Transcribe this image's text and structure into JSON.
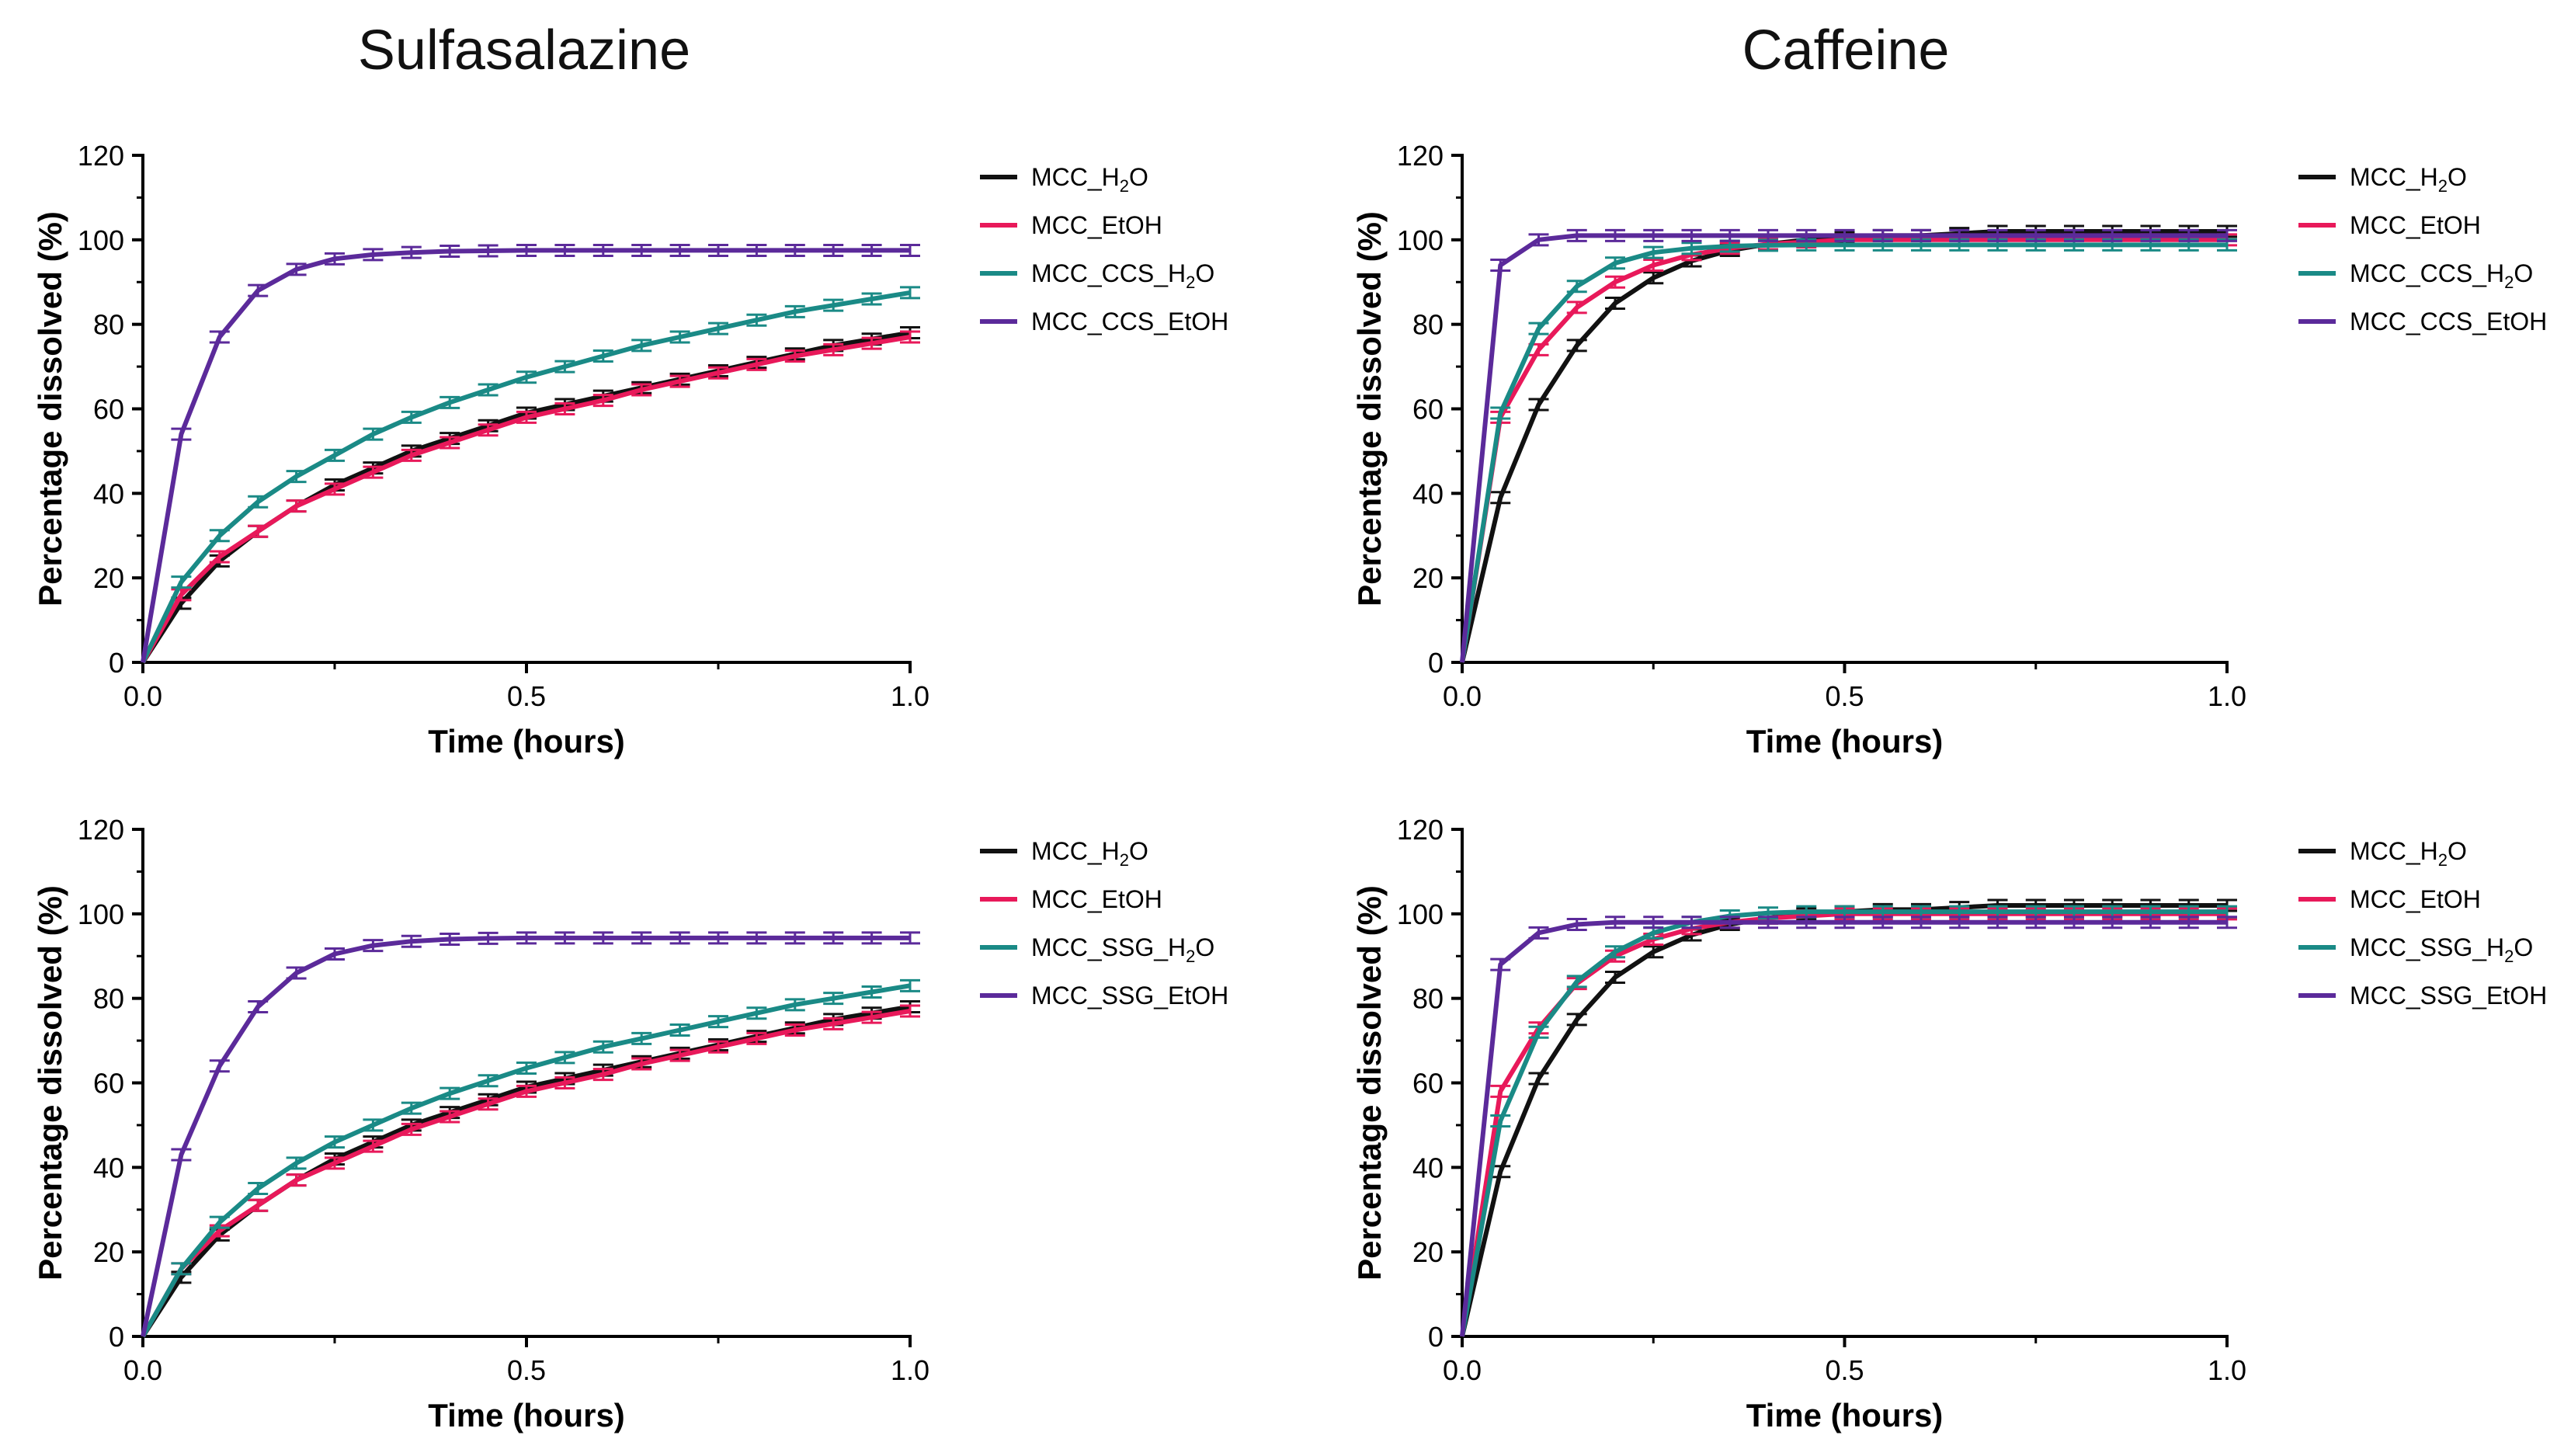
{
  "columns": {
    "left": "Sulfasalazine",
    "right": "Caffeine"
  },
  "series_colors": {
    "MCC_H2O": "#111111",
    "MCC_EtOH": "#e8195a",
    "H2O_disintegrant": "#1a8a86",
    "EtOH_disintegrant": "#5b2a9a"
  },
  "chart_data": [
    {
      "type": "line",
      "title": "Sulfasalazine",
      "xlabel": "Time (hours)",
      "ylabel": "Percentage dissolved (%)",
      "xlim": [
        0,
        1.0
      ],
      "ylim": [
        0,
        120
      ],
      "xticks": [
        "0.0",
        "0.5",
        "1.0"
      ],
      "yticks": [
        "0",
        "20",
        "40",
        "60",
        "80",
        "100",
        "120"
      ],
      "legend": {
        "placement": "right",
        "labels": [
          "MCC_H₂O",
          "MCC_EtOH",
          "MCC_CCS_H₂O",
          "MCC_CCS_EtOH"
        ]
      },
      "x": [
        0,
        0.05,
        0.1,
        0.15,
        0.2,
        0.25,
        0.3,
        0.35,
        0.4,
        0.45,
        0.5,
        0.55,
        0.6,
        0.65,
        0.7,
        0.75,
        0.8,
        0.85,
        0.9,
        0.95,
        1.0
      ],
      "series": [
        {
          "name": "MCC_H₂O",
          "color": "#111111",
          "values": [
            0,
            14,
            24,
            31,
            37,
            42,
            46,
            50,
            53,
            56,
            59,
            61,
            63,
            65,
            67,
            69,
            71,
            73,
            75,
            76.5,
            78
          ]
        },
        {
          "name": "MCC_EtOH",
          "color": "#e8195a",
          "values": [
            0,
            16,
            25,
            31,
            37,
            41,
            45,
            49,
            52,
            55,
            58,
            60,
            62,
            64.5,
            66.5,
            68.5,
            70.5,
            72.5,
            74,
            75.5,
            77
          ]
        },
        {
          "name": "MCC_CCS_H₂O",
          "color": "#1a8a86",
          "values": [
            0,
            19,
            30,
            38,
            44,
            49,
            54,
            58,
            61.5,
            64.5,
            67.5,
            70,
            72.5,
            75,
            77,
            79,
            81,
            83,
            84.5,
            86,
            87.5
          ]
        },
        {
          "name": "MCC_CCS_EtOH",
          "color": "#5b2a9a",
          "values": [
            0,
            54,
            77,
            88,
            93,
            95.5,
            96.5,
            97,
            97.3,
            97.4,
            97.5,
            97.5,
            97.5,
            97.5,
            97.5,
            97.5,
            97.5,
            97.5,
            97.5,
            97.5,
            97.5
          ]
        }
      ]
    },
    {
      "type": "line",
      "title": "Caffeine",
      "xlabel": "Time (hours)",
      "ylabel": "Percentage dissolved (%)",
      "xlim": [
        0,
        1.0
      ],
      "ylim": [
        0,
        120
      ],
      "xticks": [
        "0.0",
        "0.5",
        "1.0"
      ],
      "yticks": [
        "0",
        "20",
        "40",
        "60",
        "80",
        "100",
        "120"
      ],
      "legend": {
        "placement": "right",
        "labels": [
          "MCC_H₂O",
          "MCC_EtOH",
          "MCC_CCS_H₂O",
          "MCC_CCS_EtOH"
        ]
      },
      "x": [
        0,
        0.05,
        0.1,
        0.15,
        0.2,
        0.25,
        0.3,
        0.35,
        0.4,
        0.45,
        0.5,
        0.55,
        0.6,
        0.65,
        0.7,
        0.75,
        0.8,
        0.85,
        0.9,
        0.95,
        1.0
      ],
      "series": [
        {
          "name": "MCC_H₂O",
          "color": "#111111",
          "values": [
            0,
            39,
            61,
            75,
            85,
            91,
            95,
            97.5,
            99,
            100,
            100.5,
            101,
            101,
            101.5,
            102,
            102,
            102,
            102,
            102,
            102,
            102
          ]
        },
        {
          "name": "MCC_EtOH",
          "color": "#e8195a",
          "values": [
            0,
            58,
            74,
            84,
            90,
            94,
            96.5,
            98,
            99,
            99.5,
            100,
            100,
            100,
            100,
            100,
            100,
            100,
            100,
            100,
            100,
            100
          ]
        },
        {
          "name": "MCC_CCS_H₂O",
          "color": "#1a8a86",
          "values": [
            0,
            59,
            79,
            89,
            94.5,
            97,
            98,
            98.5,
            98.7,
            98.8,
            98.8,
            98.8,
            98.8,
            98.8,
            98.8,
            98.8,
            98.8,
            98.8,
            98.8,
            98.8,
            98.8
          ]
        },
        {
          "name": "MCC_CCS_EtOH",
          "color": "#5b2a9a",
          "values": [
            0,
            94,
            100,
            101,
            101,
            101,
            101,
            101,
            101,
            101,
            101,
            101,
            101,
            101,
            101,
            101,
            101,
            101,
            101,
            101,
            101
          ]
        }
      ]
    },
    {
      "type": "line",
      "title": "",
      "xlabel": "Time (hours)",
      "ylabel": "Percentage dissolved (%)",
      "xlim": [
        0,
        1.0
      ],
      "ylim": [
        0,
        120
      ],
      "xticks": [
        "0.0",
        "0.5",
        "1.0"
      ],
      "yticks": [
        "0",
        "20",
        "40",
        "60",
        "80",
        "100",
        "120"
      ],
      "legend": {
        "placement": "right",
        "labels": [
          "MCC_H₂O",
          "MCC_EtOH",
          "MCC_SSG_H₂O",
          "MCC_SSG_EtOH"
        ]
      },
      "x": [
        0,
        0.05,
        0.1,
        0.15,
        0.2,
        0.25,
        0.3,
        0.35,
        0.4,
        0.45,
        0.5,
        0.55,
        0.6,
        0.65,
        0.7,
        0.75,
        0.8,
        0.85,
        0.9,
        0.95,
        1.0
      ],
      "series": [
        {
          "name": "MCC_H₂O",
          "color": "#111111",
          "values": [
            0,
            14,
            24,
            31,
            37,
            42,
            46,
            50,
            53,
            56,
            59,
            61,
            63,
            65,
            67,
            69,
            71,
            73,
            75,
            76.5,
            78
          ]
        },
        {
          "name": "MCC_EtOH",
          "color": "#e8195a",
          "values": [
            0,
            16,
            25,
            31,
            37,
            41,
            45,
            49,
            52,
            55,
            58,
            60,
            62,
            64.5,
            66.5,
            68.5,
            70.5,
            72.5,
            74,
            75.5,
            77
          ]
        },
        {
          "name": "MCC_SSG_H₂O",
          "color": "#1a8a86",
          "values": [
            0,
            16,
            27,
            35,
            41,
            46,
            50,
            54,
            57.5,
            60.5,
            63.5,
            66,
            68.5,
            70.5,
            72.5,
            74.5,
            76.5,
            78.5,
            80,
            81.5,
            83
          ]
        },
        {
          "name": "MCC_SSG_EtOH",
          "color": "#5b2a9a",
          "values": [
            0,
            43,
            64,
            78,
            86,
            90.5,
            92.5,
            93.5,
            94,
            94.2,
            94.3,
            94.3,
            94.3,
            94.3,
            94.3,
            94.3,
            94.3,
            94.3,
            94.3,
            94.3,
            94.3
          ]
        }
      ]
    },
    {
      "type": "line",
      "title": "",
      "xlabel": "Time (hours)",
      "ylabel": "Percentage dissolved (%)",
      "xlim": [
        0,
        1.0
      ],
      "ylim": [
        0,
        120
      ],
      "xticks": [
        "0.0",
        "0.5",
        "1.0"
      ],
      "yticks": [
        "0",
        "20",
        "40",
        "60",
        "80",
        "100",
        "120"
      ],
      "legend": {
        "placement": "right",
        "labels": [
          "MCC_H₂O",
          "MCC_EtOH",
          "MCC_SSG_H₂O",
          "MCC_SSG_EtOH"
        ]
      },
      "x": [
        0,
        0.05,
        0.1,
        0.15,
        0.2,
        0.25,
        0.3,
        0.35,
        0.4,
        0.45,
        0.5,
        0.55,
        0.6,
        0.65,
        0.7,
        0.75,
        0.8,
        0.85,
        0.9,
        0.95,
        1.0
      ],
      "series": [
        {
          "name": "MCC_H₂O",
          "color": "#111111",
          "values": [
            0,
            39,
            61,
            75,
            85,
            91,
            95,
            97.5,
            99,
            100,
            100.5,
            101,
            101,
            101.5,
            102,
            102,
            102,
            102,
            102,
            102,
            102
          ]
        },
        {
          "name": "MCC_EtOH",
          "color": "#e8195a",
          "values": [
            0,
            58,
            73,
            83.5,
            90,
            94,
            96.5,
            98,
            99,
            99.5,
            100,
            100,
            100,
            100,
            100,
            100,
            100,
            100,
            100,
            100,
            100
          ]
        },
        {
          "name": "MCC_SSG_H₂O",
          "color": "#1a8a86",
          "values": [
            0,
            51,
            72,
            84,
            91,
            95.5,
            98,
            99.5,
            100.2,
            100.5,
            100.5,
            100.5,
            100.5,
            100.5,
            100.5,
            100.5,
            100.5,
            100.5,
            100.5,
            100.5,
            100.5
          ]
        },
        {
          "name": "MCC_SSG_EtOH",
          "color": "#5b2a9a",
          "values": [
            0,
            88,
            95.5,
            97.5,
            98,
            98,
            98,
            98,
            98,
            98,
            98,
            98,
            98,
            98,
            98,
            98,
            98,
            98,
            98,
            98,
            98
          ]
        }
      ]
    }
  ]
}
